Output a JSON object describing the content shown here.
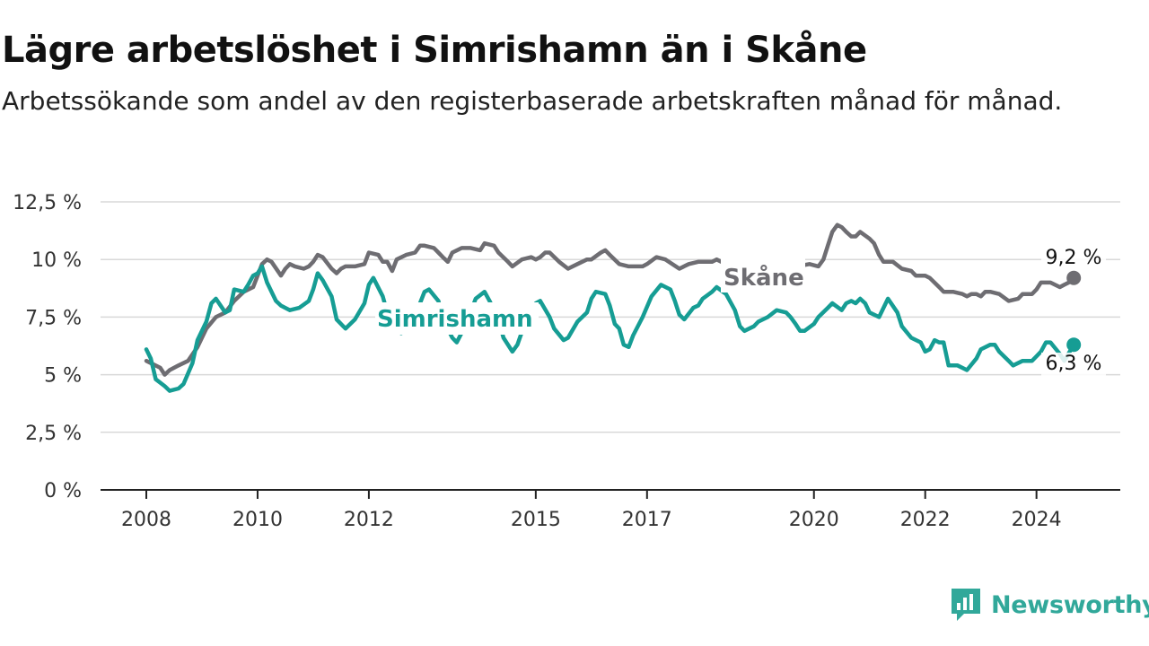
{
  "title": "Lägre arbetslöshet i Simrishamn än i Skåne",
  "subtitle": "Arbetssökande som andel av den registerbaserade arbetskraften månad för månad.",
  "brand": {
    "name": "Newsworthy",
    "color": "#31a89a",
    "icon": "newsworthy-logo-icon"
  },
  "chart_data": {
    "type": "line",
    "xlim": [
      2008,
      2024.667
    ],
    "ylim": [
      0,
      12.5
    ],
    "y_ticks": [
      {
        "value": 0,
        "label": "0 %"
      },
      {
        "value": 2.5,
        "label": "2,5 %"
      },
      {
        "value": 5,
        "label": "5 %"
      },
      {
        "value": 7.5,
        "label": "7,5 %"
      },
      {
        "value": 10,
        "label": "10 %"
      },
      {
        "value": 12.5,
        "label": "12,5 %"
      }
    ],
    "x_ticks": [
      {
        "value": 2008,
        "label": "2008"
      },
      {
        "value": 2010,
        "label": "2010"
      },
      {
        "value": 2012,
        "label": "2012"
      },
      {
        "value": 2015,
        "label": "2015"
      },
      {
        "value": 2017,
        "label": "2017"
      },
      {
        "value": 2020,
        "label": "2020"
      },
      {
        "value": 2022,
        "label": "2022"
      },
      {
        "value": 2024,
        "label": "2024"
      }
    ],
    "grid": true,
    "series": [
      {
        "name": "Skåne",
        "color": "#6e6d72",
        "end_label": "9,2 %",
        "points": [
          [
            2008.0,
            5.6
          ],
          [
            2008.25,
            5.3
          ],
          [
            2008.33,
            5.0
          ],
          [
            2008.42,
            5.2
          ],
          [
            2008.58,
            5.4
          ],
          [
            2008.75,
            5.6
          ],
          [
            2008.92,
            6.2
          ],
          [
            2009.08,
            7.0
          ],
          [
            2009.25,
            7.5
          ],
          [
            2009.42,
            7.7
          ],
          [
            2009.58,
            8.2
          ],
          [
            2009.75,
            8.6
          ],
          [
            2009.92,
            8.8
          ],
          [
            2010.0,
            9.3
          ],
          [
            2010.08,
            9.8
          ],
          [
            2010.17,
            10.0
          ],
          [
            2010.25,
            9.9
          ],
          [
            2010.42,
            9.3
          ],
          [
            2010.5,
            9.6
          ],
          [
            2010.58,
            9.8
          ],
          [
            2010.67,
            9.7
          ],
          [
            2010.83,
            9.6
          ],
          [
            2010.92,
            9.7
          ],
          [
            2011.0,
            9.9
          ],
          [
            2011.08,
            10.2
          ],
          [
            2011.17,
            10.1
          ],
          [
            2011.33,
            9.6
          ],
          [
            2011.42,
            9.4
          ],
          [
            2011.5,
            9.6
          ],
          [
            2011.58,
            9.7
          ],
          [
            2011.75,
            9.7
          ],
          [
            2011.92,
            9.8
          ],
          [
            2012.0,
            10.3
          ],
          [
            2012.17,
            10.2
          ],
          [
            2012.25,
            9.9
          ],
          [
            2012.33,
            9.9
          ],
          [
            2012.42,
            9.5
          ],
          [
            2012.5,
            10.0
          ],
          [
            2012.67,
            10.2
          ],
          [
            2012.83,
            10.3
          ],
          [
            2012.92,
            10.6
          ],
          [
            2013.0,
            10.6
          ],
          [
            2013.17,
            10.5
          ],
          [
            2013.25,
            10.3
          ],
          [
            2013.33,
            10.1
          ],
          [
            2013.42,
            9.9
          ],
          [
            2013.5,
            10.3
          ],
          [
            2013.67,
            10.5
          ],
          [
            2013.83,
            10.5
          ],
          [
            2014.0,
            10.4
          ],
          [
            2014.08,
            10.7
          ],
          [
            2014.25,
            10.6
          ],
          [
            2014.33,
            10.3
          ],
          [
            2014.5,
            9.9
          ],
          [
            2014.58,
            9.7
          ],
          [
            2014.75,
            10.0
          ],
          [
            2014.92,
            10.1
          ],
          [
            2015.0,
            10.0
          ],
          [
            2015.08,
            10.1
          ],
          [
            2015.17,
            10.3
          ],
          [
            2015.25,
            10.3
          ],
          [
            2015.42,
            9.9
          ],
          [
            2015.58,
            9.6
          ],
          [
            2015.75,
            9.8
          ],
          [
            2015.92,
            10.0
          ],
          [
            2016.0,
            10.0
          ],
          [
            2016.17,
            10.3
          ],
          [
            2016.25,
            10.4
          ],
          [
            2016.33,
            10.2
          ],
          [
            2016.5,
            9.8
          ],
          [
            2016.67,
            9.7
          ],
          [
            2016.83,
            9.7
          ],
          [
            2016.92,
            9.7
          ],
          [
            2017.0,
            9.8
          ],
          [
            2017.17,
            10.1
          ],
          [
            2017.33,
            10.0
          ],
          [
            2017.58,
            9.6
          ],
          [
            2017.75,
            9.8
          ],
          [
            2017.92,
            9.9
          ],
          [
            2018.0,
            9.9
          ],
          [
            2018.17,
            9.9
          ],
          [
            2018.25,
            10.0
          ],
          [
            2018.42,
            9.8
          ],
          [
            2018.5,
            9.5
          ],
          [
            2018.58,
            9.2
          ],
          [
            2019.92,
            9.8
          ],
          [
            2020.08,
            9.7
          ],
          [
            2020.17,
            10.0
          ],
          [
            2020.25,
            10.6
          ],
          [
            2020.33,
            11.2
          ],
          [
            2020.42,
            11.5
          ],
          [
            2020.5,
            11.4
          ],
          [
            2020.58,
            11.2
          ],
          [
            2020.67,
            11.0
          ],
          [
            2020.75,
            11.0
          ],
          [
            2020.83,
            11.2
          ],
          [
            2021.0,
            10.9
          ],
          [
            2021.08,
            10.7
          ],
          [
            2021.17,
            10.2
          ],
          [
            2021.25,
            9.9
          ],
          [
            2021.42,
            9.9
          ],
          [
            2021.58,
            9.6
          ],
          [
            2021.75,
            9.5
          ],
          [
            2021.83,
            9.3
          ],
          [
            2022.0,
            9.3
          ],
          [
            2022.08,
            9.2
          ],
          [
            2022.25,
            8.8
          ],
          [
            2022.33,
            8.6
          ],
          [
            2022.5,
            8.6
          ],
          [
            2022.67,
            8.5
          ],
          [
            2022.75,
            8.4
          ],
          [
            2022.83,
            8.5
          ],
          [
            2022.92,
            8.5
          ],
          [
            2023.0,
            8.4
          ],
          [
            2023.08,
            8.6
          ],
          [
            2023.17,
            8.6
          ],
          [
            2023.33,
            8.5
          ],
          [
            2023.5,
            8.2
          ],
          [
            2023.67,
            8.3
          ],
          [
            2023.75,
            8.5
          ],
          [
            2023.92,
            8.5
          ],
          [
            2024.0,
            8.7
          ],
          [
            2024.08,
            9.0
          ],
          [
            2024.25,
            9.0
          ],
          [
            2024.42,
            8.8
          ],
          [
            2024.5,
            8.9
          ],
          [
            2024.58,
            9.0
          ],
          [
            2024.67,
            9.2
          ]
        ]
      },
      {
        "name": "Simrishamn",
        "color": "#169d94",
        "end_label": "6,3 %",
        "points": [
          [
            2008.0,
            6.1
          ],
          [
            2008.08,
            5.7
          ],
          [
            2008.17,
            4.8
          ],
          [
            2008.33,
            4.5
          ],
          [
            2008.42,
            4.3
          ],
          [
            2008.58,
            4.4
          ],
          [
            2008.67,
            4.6
          ],
          [
            2008.83,
            5.5
          ],
          [
            2008.92,
            6.5
          ],
          [
            2009.08,
            7.3
          ],
          [
            2009.17,
            8.1
          ],
          [
            2009.25,
            8.3
          ],
          [
            2009.42,
            7.7
          ],
          [
            2009.5,
            7.8
          ],
          [
            2009.58,
            8.7
          ],
          [
            2009.75,
            8.6
          ],
          [
            2009.83,
            8.9
          ],
          [
            2009.92,
            9.3
          ],
          [
            2010.0,
            9.4
          ],
          [
            2010.08,
            9.7
          ],
          [
            2010.17,
            9.0
          ],
          [
            2010.33,
            8.2
          ],
          [
            2010.42,
            8.0
          ],
          [
            2010.58,
            7.8
          ],
          [
            2010.75,
            7.9
          ],
          [
            2010.92,
            8.2
          ],
          [
            2011.0,
            8.7
          ],
          [
            2011.08,
            9.4
          ],
          [
            2011.17,
            9.1
          ],
          [
            2011.33,
            8.4
          ],
          [
            2011.42,
            7.4
          ],
          [
            2011.58,
            7.0
          ],
          [
            2011.75,
            7.4
          ],
          [
            2011.92,
            8.1
          ],
          [
            2012.0,
            8.9
          ],
          [
            2012.08,
            9.2
          ],
          [
            2012.25,
            8.4
          ],
          [
            2012.33,
            7.7
          ],
          [
            2012.42,
            7.2
          ],
          [
            2012.58,
            6.8
          ],
          [
            2012.75,
            7.3
          ],
          [
            2012.92,
            8.1
          ],
          [
            2013.0,
            8.6
          ],
          [
            2013.08,
            8.7
          ],
          [
            2013.25,
            8.2
          ],
          [
            2013.33,
            7.4
          ],
          [
            2013.5,
            6.6
          ],
          [
            2013.58,
            6.4
          ],
          [
            2013.75,
            7.2
          ],
          [
            2013.92,
            8.3
          ],
          [
            2014.08,
            8.6
          ],
          [
            2014.17,
            8.2
          ],
          [
            2014.33,
            7.4
          ],
          [
            2014.42,
            6.6
          ],
          [
            2014.58,
            6.0
          ],
          [
            2014.67,
            6.3
          ],
          [
            2014.83,
            7.4
          ],
          [
            2014.92,
            7.8
          ],
          [
            2015.0,
            8.1
          ],
          [
            2015.08,
            8.2
          ],
          [
            2015.25,
            7.5
          ],
          [
            2015.33,
            7.0
          ],
          [
            2015.5,
            6.5
          ],
          [
            2015.58,
            6.6
          ],
          [
            2015.75,
            7.3
          ],
          [
            2015.92,
            7.7
          ],
          [
            2016.0,
            8.3
          ],
          [
            2016.08,
            8.6
          ],
          [
            2016.25,
            8.5
          ],
          [
            2016.33,
            8.0
          ],
          [
            2016.42,
            7.2
          ],
          [
            2016.5,
            7.0
          ],
          [
            2016.58,
            6.3
          ],
          [
            2016.67,
            6.2
          ],
          [
            2016.75,
            6.7
          ],
          [
            2016.92,
            7.5
          ],
          [
            2017.08,
            8.4
          ],
          [
            2017.25,
            8.9
          ],
          [
            2017.42,
            8.7
          ],
          [
            2017.5,
            8.2
          ],
          [
            2017.58,
            7.6
          ],
          [
            2017.67,
            7.4
          ],
          [
            2017.83,
            7.9
          ],
          [
            2017.92,
            8.0
          ],
          [
            2018.0,
            8.3
          ],
          [
            2018.17,
            8.6
          ],
          [
            2018.25,
            8.8
          ],
          [
            2018.42,
            8.5
          ],
          [
            2018.58,
            7.8
          ],
          [
            2018.67,
            7.1
          ],
          [
            2018.75,
            6.9
          ],
          [
            2018.92,
            7.1
          ],
          [
            2019.0,
            7.3
          ],
          [
            2019.17,
            7.5
          ],
          [
            2019.33,
            7.8
          ],
          [
            2019.5,
            7.7
          ],
          [
            2019.58,
            7.5
          ],
          [
            2019.67,
            7.2
          ],
          [
            2019.75,
            6.9
          ],
          [
            2019.83,
            6.9
          ],
          [
            2020.0,
            7.2
          ],
          [
            2020.08,
            7.5
          ],
          [
            2020.25,
            7.9
          ],
          [
            2020.33,
            8.1
          ],
          [
            2020.5,
            7.8
          ],
          [
            2020.58,
            8.1
          ],
          [
            2020.67,
            8.2
          ],
          [
            2020.75,
            8.1
          ],
          [
            2020.83,
            8.3
          ],
          [
            2020.92,
            8.1
          ],
          [
            2021.0,
            7.7
          ],
          [
            2021.17,
            7.5
          ],
          [
            2021.33,
            8.3
          ],
          [
            2021.5,
            7.7
          ],
          [
            2021.58,
            7.1
          ],
          [
            2021.75,
            6.6
          ],
          [
            2021.92,
            6.4
          ],
          [
            2022.0,
            6.0
          ],
          [
            2022.08,
            6.1
          ],
          [
            2022.17,
            6.5
          ],
          [
            2022.25,
            6.4
          ],
          [
            2022.33,
            6.4
          ],
          [
            2022.42,
            5.4
          ],
          [
            2022.58,
            5.4
          ],
          [
            2022.75,
            5.2
          ],
          [
            2022.92,
            5.7
          ],
          [
            2023.0,
            6.1
          ],
          [
            2023.17,
            6.3
          ],
          [
            2023.25,
            6.3
          ],
          [
            2023.33,
            6.0
          ],
          [
            2023.5,
            5.6
          ],
          [
            2023.58,
            5.4
          ],
          [
            2023.75,
            5.6
          ],
          [
            2023.92,
            5.6
          ],
          [
            2024.0,
            5.8
          ],
          [
            2024.08,
            6.0
          ],
          [
            2024.17,
            6.4
          ],
          [
            2024.25,
            6.4
          ],
          [
            2024.42,
            5.9
          ],
          [
            2024.5,
            5.6
          ],
          [
            2024.67,
            6.3
          ]
        ]
      }
    ]
  }
}
